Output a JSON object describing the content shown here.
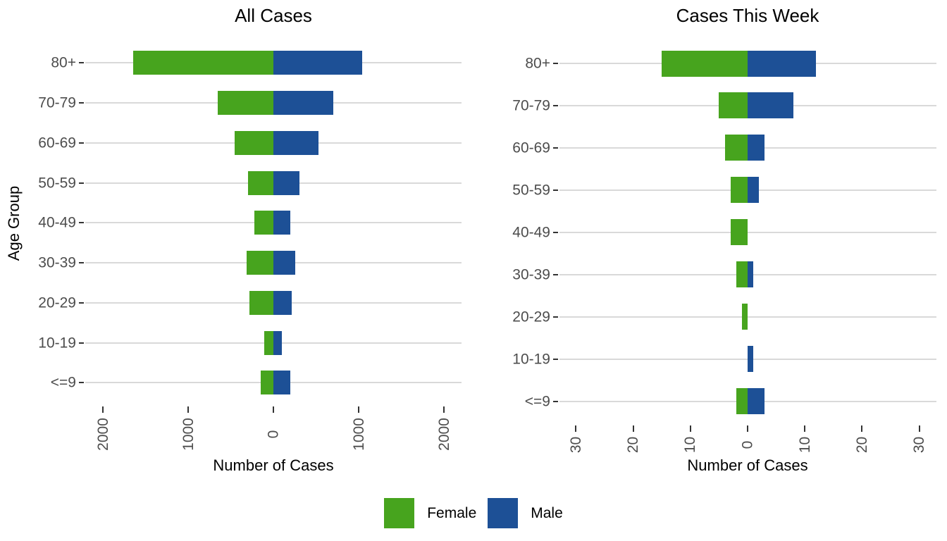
{
  "chart_data": [
    {
      "type": "bar",
      "orientation": "horizontal",
      "diverging": true,
      "title": "All Cases",
      "xlabel": "Number of Cases",
      "ylabel": "Age Group",
      "categories": [
        "80+",
        "70-79",
        "60-69",
        "50-59",
        "40-49",
        "30-39",
        "20-29",
        "10-19",
        "<=9"
      ],
      "series": [
        {
          "name": "Female",
          "color": "#47a41e",
          "values": [
            1645,
            655,
            455,
            295,
            225,
            315,
            280,
            110,
            150
          ]
        },
        {
          "name": "Male",
          "color": "#1d5096",
          "values": [
            1040,
            700,
            525,
            305,
            195,
            260,
            215,
            100,
            200
          ]
        }
      ],
      "x_ticks": [
        -2000,
        -1000,
        0,
        1000,
        2000
      ],
      "x_tick_labels": [
        "2000",
        "1000",
        "0",
        "1000",
        "2000"
      ],
      "xlim": [
        -2210,
        2210
      ],
      "grid": "horizontal",
      "legend_position": "bottom"
    },
    {
      "type": "bar",
      "orientation": "horizontal",
      "diverging": true,
      "title": "Cases This Week",
      "xlabel": "Number of Cases",
      "ylabel": "Age Group",
      "categories": [
        "80+",
        "70-79",
        "60-69",
        "50-59",
        "40-49",
        "30-39",
        "20-29",
        "10-19",
        "<=9"
      ],
      "series": [
        {
          "name": "Female",
          "color": "#47a41e",
          "values": [
            15,
            5,
            4,
            3,
            3,
            2,
            1,
            0,
            2
          ]
        },
        {
          "name": "Male",
          "color": "#1d5096",
          "values": [
            12,
            8,
            3,
            2,
            0,
            1,
            0,
            1,
            3
          ]
        }
      ],
      "x_ticks": [
        -30,
        -20,
        -10,
        0,
        10,
        20,
        30
      ],
      "x_tick_labels": [
        "30",
        "20",
        "10",
        "0",
        "10",
        "20",
        "30"
      ],
      "xlim": [
        -33,
        33
      ],
      "grid": "horizontal",
      "legend_position": "bottom"
    }
  ],
  "legend": {
    "items": [
      {
        "label": "Female",
        "color": "#47a41e"
      },
      {
        "label": "Male",
        "color": "#1d5096"
      }
    ]
  },
  "colors": {
    "female": "#47a41e",
    "male": "#1d5096",
    "gridline": "#d9d9d9",
    "tick": "#333333",
    "tick_label": "#4d4d4d",
    "text": "#000000",
    "background": "#ffffff"
  }
}
